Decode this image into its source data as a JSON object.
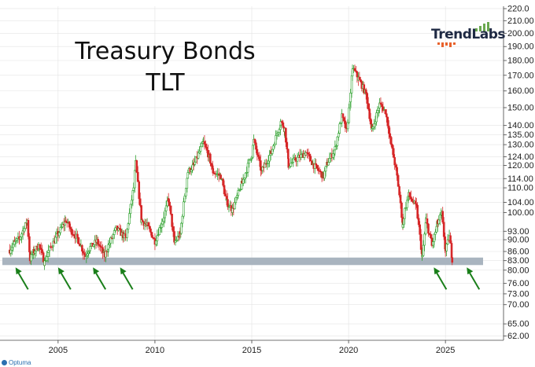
{
  "header": {
    "title_line1": "Treasury Bonds",
    "title_line2": "TLT",
    "brand": "TrendLabs"
  },
  "footer": {
    "source": "Optuma"
  },
  "colors": {
    "up_candle": "#2ca02c",
    "down_candle": "#d62728",
    "support_band": "#a9b4bf",
    "arrow": "#1a7f1a",
    "grid": "#e3e3e3",
    "brand_green": "#6aa84f",
    "brand_orange": "#e8622c"
  },
  "chart_data": {
    "type": "line",
    "series": [
      {
        "values": [
          {
            "t": 2002.5,
            "close": 86.5
          },
          {
            "t": 2002.75,
            "close": 89.0
          },
          {
            "t": 2003.0,
            "close": 90.5
          },
          {
            "t": 2003.25,
            "close": 94.0
          },
          {
            "t": 2003.4,
            "close": 97.0
          },
          {
            "t": 2003.55,
            "close": 83.5
          },
          {
            "t": 2003.75,
            "close": 86.0
          },
          {
            "t": 2004.0,
            "close": 88.0
          },
          {
            "t": 2004.3,
            "close": 82.5
          },
          {
            "t": 2004.5,
            "close": 86.0
          },
          {
            "t": 2004.75,
            "close": 89.0
          },
          {
            "t": 2005.0,
            "close": 92.0
          },
          {
            "t": 2005.4,
            "close": 97.0
          },
          {
            "t": 2005.7,
            "close": 93.0
          },
          {
            "t": 2006.0,
            "close": 90.5
          },
          {
            "t": 2006.4,
            "close": 84.5
          },
          {
            "t": 2006.6,
            "close": 87.0
          },
          {
            "t": 2007.0,
            "close": 89.5
          },
          {
            "t": 2007.4,
            "close": 84.5
          },
          {
            "t": 2007.6,
            "close": 88.0
          },
          {
            "t": 2008.0,
            "close": 94.0
          },
          {
            "t": 2008.5,
            "close": 90.5
          },
          {
            "t": 2008.9,
            "close": 110.0
          },
          {
            "t": 2009.0,
            "close": 121.0
          },
          {
            "t": 2009.3,
            "close": 97.0
          },
          {
            "t": 2009.6,
            "close": 95.0
          },
          {
            "t": 2010.0,
            "close": 89.5
          },
          {
            "t": 2010.4,
            "close": 97.0
          },
          {
            "t": 2010.7,
            "close": 105.0
          },
          {
            "t": 2011.0,
            "close": 89.0
          },
          {
            "t": 2011.3,
            "close": 92.0
          },
          {
            "t": 2011.7,
            "close": 117.0
          },
          {
            "t": 2012.0,
            "close": 120.0
          },
          {
            "t": 2012.5,
            "close": 131.0
          },
          {
            "t": 2012.8,
            "close": 124.0
          },
          {
            "t": 2013.0,
            "close": 117.0
          },
          {
            "t": 2013.4,
            "close": 115.0
          },
          {
            "t": 2013.7,
            "close": 104.0
          },
          {
            "t": 2014.0,
            "close": 101.0
          },
          {
            "t": 2014.5,
            "close": 112.0
          },
          {
            "t": 2015.0,
            "close": 125.0
          },
          {
            "t": 2015.1,
            "close": 132.0
          },
          {
            "t": 2015.5,
            "close": 117.0
          },
          {
            "t": 2016.0,
            "close": 126.0
          },
          {
            "t": 2016.5,
            "close": 142.0
          },
          {
            "t": 2016.7,
            "close": 138.0
          },
          {
            "t": 2016.9,
            "close": 120.0
          },
          {
            "t": 2017.3,
            "close": 123.0
          },
          {
            "t": 2017.8,
            "close": 126.0
          },
          {
            "t": 2018.2,
            "close": 120.0
          },
          {
            "t": 2018.7,
            "close": 115.0
          },
          {
            "t": 2018.9,
            "close": 121.0
          },
          {
            "t": 2019.3,
            "close": 128.0
          },
          {
            "t": 2019.65,
            "close": 145.0
          },
          {
            "t": 2019.9,
            "close": 137.0
          },
          {
            "t": 2020.1,
            "close": 157.0
          },
          {
            "t": 2020.2,
            "close": 175.0
          },
          {
            "t": 2020.5,
            "close": 168.0
          },
          {
            "t": 2020.9,
            "close": 158.0
          },
          {
            "t": 2021.2,
            "close": 137.0
          },
          {
            "t": 2021.6,
            "close": 152.0
          },
          {
            "t": 2021.9,
            "close": 148.0
          },
          {
            "t": 2022.2,
            "close": 130.0
          },
          {
            "t": 2022.5,
            "close": 115.0
          },
          {
            "t": 2022.8,
            "close": 95.0
          },
          {
            "t": 2022.9,
            "close": 101.0
          },
          {
            "t": 2023.1,
            "close": 107.0
          },
          {
            "t": 2023.5,
            "close": 102.0
          },
          {
            "t": 2023.8,
            "close": 84.0
          },
          {
            "t": 2024.0,
            "close": 97.0
          },
          {
            "t": 2024.3,
            "close": 88.0
          },
          {
            "t": 2024.6,
            "close": 96.0
          },
          {
            "t": 2024.8,
            "close": 99.5
          },
          {
            "t": 2025.0,
            "close": 86.0
          },
          {
            "t": 2025.2,
            "close": 91.0
          },
          {
            "t": 2025.35,
            "close": 83.5
          }
        ]
      }
    ],
    "xlabel": "",
    "ylabel": "",
    "x_ticks": [
      "2005",
      "2010",
      "2015",
      "2020",
      "2025"
    ],
    "x_tick_values": [
      2005,
      2010,
      2015,
      2020,
      2025
    ],
    "y_ticks": [
      "220.0",
      "210.00",
      "200.00",
      "190.00",
      "180.00",
      "170.00",
      "160.00",
      "150.00",
      "140.00",
      "135.00",
      "130.00",
      "124.00",
      "120.00",
      "114.00",
      "110.00",
      "104.00",
      "100.00",
      "93.00",
      "90.00",
      "86.00",
      "83.00",
      "80.00",
      "76.00",
      "73.00",
      "70.00",
      "65.00",
      "62.00"
    ],
    "y_tick_values": [
      220,
      210,
      200,
      190,
      180,
      170,
      160,
      150,
      140,
      135,
      130,
      124,
      120,
      114,
      110,
      104,
      100,
      93,
      90,
      86,
      83,
      80,
      76,
      73,
      70,
      65,
      62
    ],
    "xlim": [
      2002.0,
      2028.0
    ],
    "ylim": [
      61,
      222
    ],
    "log_scale": true,
    "grid": true,
    "support_band": [
      81.6,
      84.0
    ],
    "support_arrows_at": [
      2002.8,
      2005.0,
      2006.8,
      2008.2,
      2024.4,
      2026.1
    ]
  }
}
